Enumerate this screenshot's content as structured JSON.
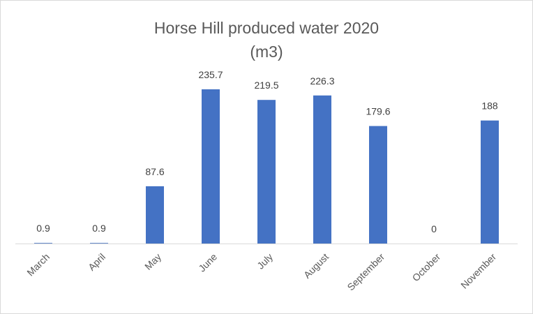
{
  "chart_data": {
    "type": "bar",
    "title_line1": "Horse Hill produced water 2020",
    "title_line2": "(m3)",
    "xlabel": "",
    "ylabel": "",
    "categories": [
      "March",
      "April",
      "May",
      "June",
      "July",
      "August",
      "September",
      "October",
      "November"
    ],
    "values": [
      0.9,
      0.9,
      87.6,
      235.7,
      219.5,
      226.3,
      179.6,
      0,
      188
    ],
    "data_labels": [
      "0.9",
      "0.9",
      "87.6",
      "235.7",
      "219.5",
      "226.3",
      "179.6",
      "0",
      "188"
    ],
    "ylim": [
      0,
      235.7
    ],
    "grid": false,
    "legend": "none",
    "bar_color": "#4472C4",
    "axis_color": "#d9d9d9"
  }
}
